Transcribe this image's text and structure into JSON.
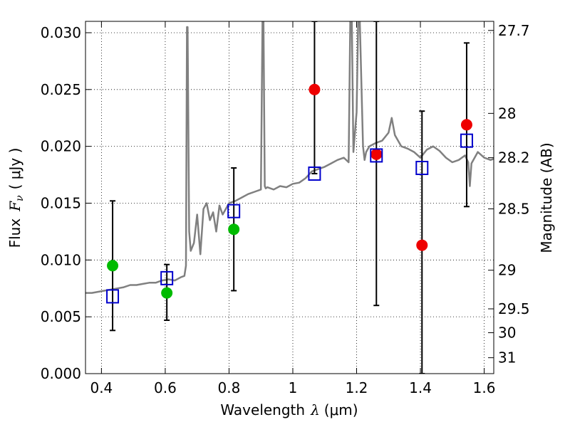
{
  "chart_data": {
    "type": "scatter",
    "xlabel": "Wavelength",
    "xlabel_symbol": "λ",
    "xlabel_unit": "(μm)",
    "ylabel": "Flux",
    "ylabel_symbol": "F",
    "ylabel_symbol_sub": "ν",
    "ylabel_unit": "( μJy )",
    "y2label": "Magnitude (AB)",
    "xlim": [
      0.35,
      1.63
    ],
    "ylim": [
      0.0,
      0.031
    ],
    "grid": true,
    "x_ticks": [
      0.4,
      0.6,
      0.8,
      1.0,
      1.2,
      1.4,
      1.6
    ],
    "x_tick_labels": [
      "0.4",
      "0.6",
      "0.8",
      "1",
      "1.2",
      "1.4",
      "1.6"
    ],
    "y_ticks": [
      0.0,
      0.005,
      0.01,
      0.015,
      0.02,
      0.025,
      0.03
    ],
    "y_tick_labels": [
      "0.000",
      "0.005",
      "0.010",
      "0.015",
      "0.020",
      "0.025",
      "0.030"
    ],
    "y2_ticks": [
      {
        "label": "27.7",
        "flux": 0.0302
      },
      {
        "label": "28",
        "flux": 0.0229
      },
      {
        "label": "28.2",
        "flux": 0.019
      },
      {
        "label": "28.5",
        "flux": 0.0145
      },
      {
        "label": "29",
        "flux": 0.0091
      },
      {
        "label": "29.5",
        "flux": 0.0057
      },
      {
        "label": "30",
        "flux": 0.0036
      },
      {
        "label": "31",
        "flux": 0.0014
      }
    ],
    "series": [
      {
        "kind": "line",
        "color": "#808080",
        "x": [
          0.35,
          0.37,
          0.39,
          0.41,
          0.43,
          0.45,
          0.47,
          0.49,
          0.51,
          0.53,
          0.55,
          0.57,
          0.59,
          0.61,
          0.63,
          0.65,
          0.66,
          0.665,
          0.668,
          0.67,
          0.675,
          0.68,
          0.69,
          0.7,
          0.71,
          0.72,
          0.73,
          0.74,
          0.75,
          0.76,
          0.77,
          0.78,
          0.79,
          0.8,
          0.82,
          0.84,
          0.86,
          0.88,
          0.9,
          0.905,
          0.908,
          0.912,
          0.915,
          0.92,
          0.94,
          0.96,
          0.98,
          1.0,
          1.02,
          1.04,
          1.06,
          1.08,
          1.1,
          1.12,
          1.14,
          1.16,
          1.175,
          1.18,
          1.185,
          1.19,
          1.2,
          1.205,
          1.21,
          1.22,
          1.225,
          1.23,
          1.24,
          1.26,
          1.28,
          1.3,
          1.31,
          1.32,
          1.34,
          1.36,
          1.38,
          1.4,
          1.42,
          1.44,
          1.46,
          1.48,
          1.5,
          1.52,
          1.54,
          1.55,
          1.555,
          1.56,
          1.58,
          1.6,
          1.62,
          1.63
        ],
        "y": [
          0.0071,
          0.0071,
          0.0072,
          0.0073,
          0.0074,
          0.0075,
          0.0076,
          0.0078,
          0.0078,
          0.0079,
          0.008,
          0.008,
          0.0082,
          0.0083,
          0.0082,
          0.0085,
          0.0086,
          0.0095,
          0.0305,
          0.0305,
          0.0125,
          0.0108,
          0.0115,
          0.014,
          0.0105,
          0.0145,
          0.015,
          0.0135,
          0.0142,
          0.0125,
          0.0148,
          0.014,
          0.0145,
          0.015,
          0.0152,
          0.0155,
          0.0158,
          0.016,
          0.0162,
          0.031,
          0.031,
          0.0165,
          0.0163,
          0.0164,
          0.0162,
          0.0165,
          0.0164,
          0.0167,
          0.0168,
          0.0172,
          0.0178,
          0.018,
          0.0182,
          0.0185,
          0.0188,
          0.019,
          0.0186,
          0.031,
          0.031,
          0.0195,
          0.023,
          0.031,
          0.031,
          0.02,
          0.0188,
          0.0195,
          0.02,
          0.0203,
          0.0205,
          0.0212,
          0.0225,
          0.021,
          0.02,
          0.0198,
          0.0195,
          0.019,
          0.0197,
          0.02,
          0.0196,
          0.019,
          0.0186,
          0.0188,
          0.0192,
          0.0186,
          0.0165,
          0.0185,
          0.0195,
          0.019,
          0.0188,
          0.0189
        ]
      },
      {
        "kind": "points",
        "marker": "circle",
        "color": "#00bb00",
        "x": [
          0.435,
          0.605,
          0.815
        ],
        "y": [
          0.0095,
          0.0071,
          0.0127
        ]
      },
      {
        "kind": "points",
        "marker": "circle",
        "color": "#ee0000",
        "x": [
          1.068,
          1.262,
          1.405,
          1.545
        ],
        "y": [
          0.025,
          0.0193,
          0.0113,
          0.0219
        ]
      },
      {
        "kind": "errorbar",
        "marker": "square-open",
        "color": "#0000cc",
        "x": [
          0.435,
          0.605,
          0.815,
          1.068,
          1.262,
          1.405,
          1.545
        ],
        "y": [
          0.0068,
          0.0084,
          0.0143,
          0.0176,
          0.0192,
          0.0181,
          0.0205
        ],
        "yerr_low": [
          0.0038,
          0.0047,
          0.0073,
          0.0176,
          0.006,
          0.0,
          0.0147
        ],
        "yerr_high": [
          0.0152,
          0.0096,
          0.0181,
          0.031,
          0.031,
          0.0231,
          0.0291
        ]
      }
    ]
  }
}
